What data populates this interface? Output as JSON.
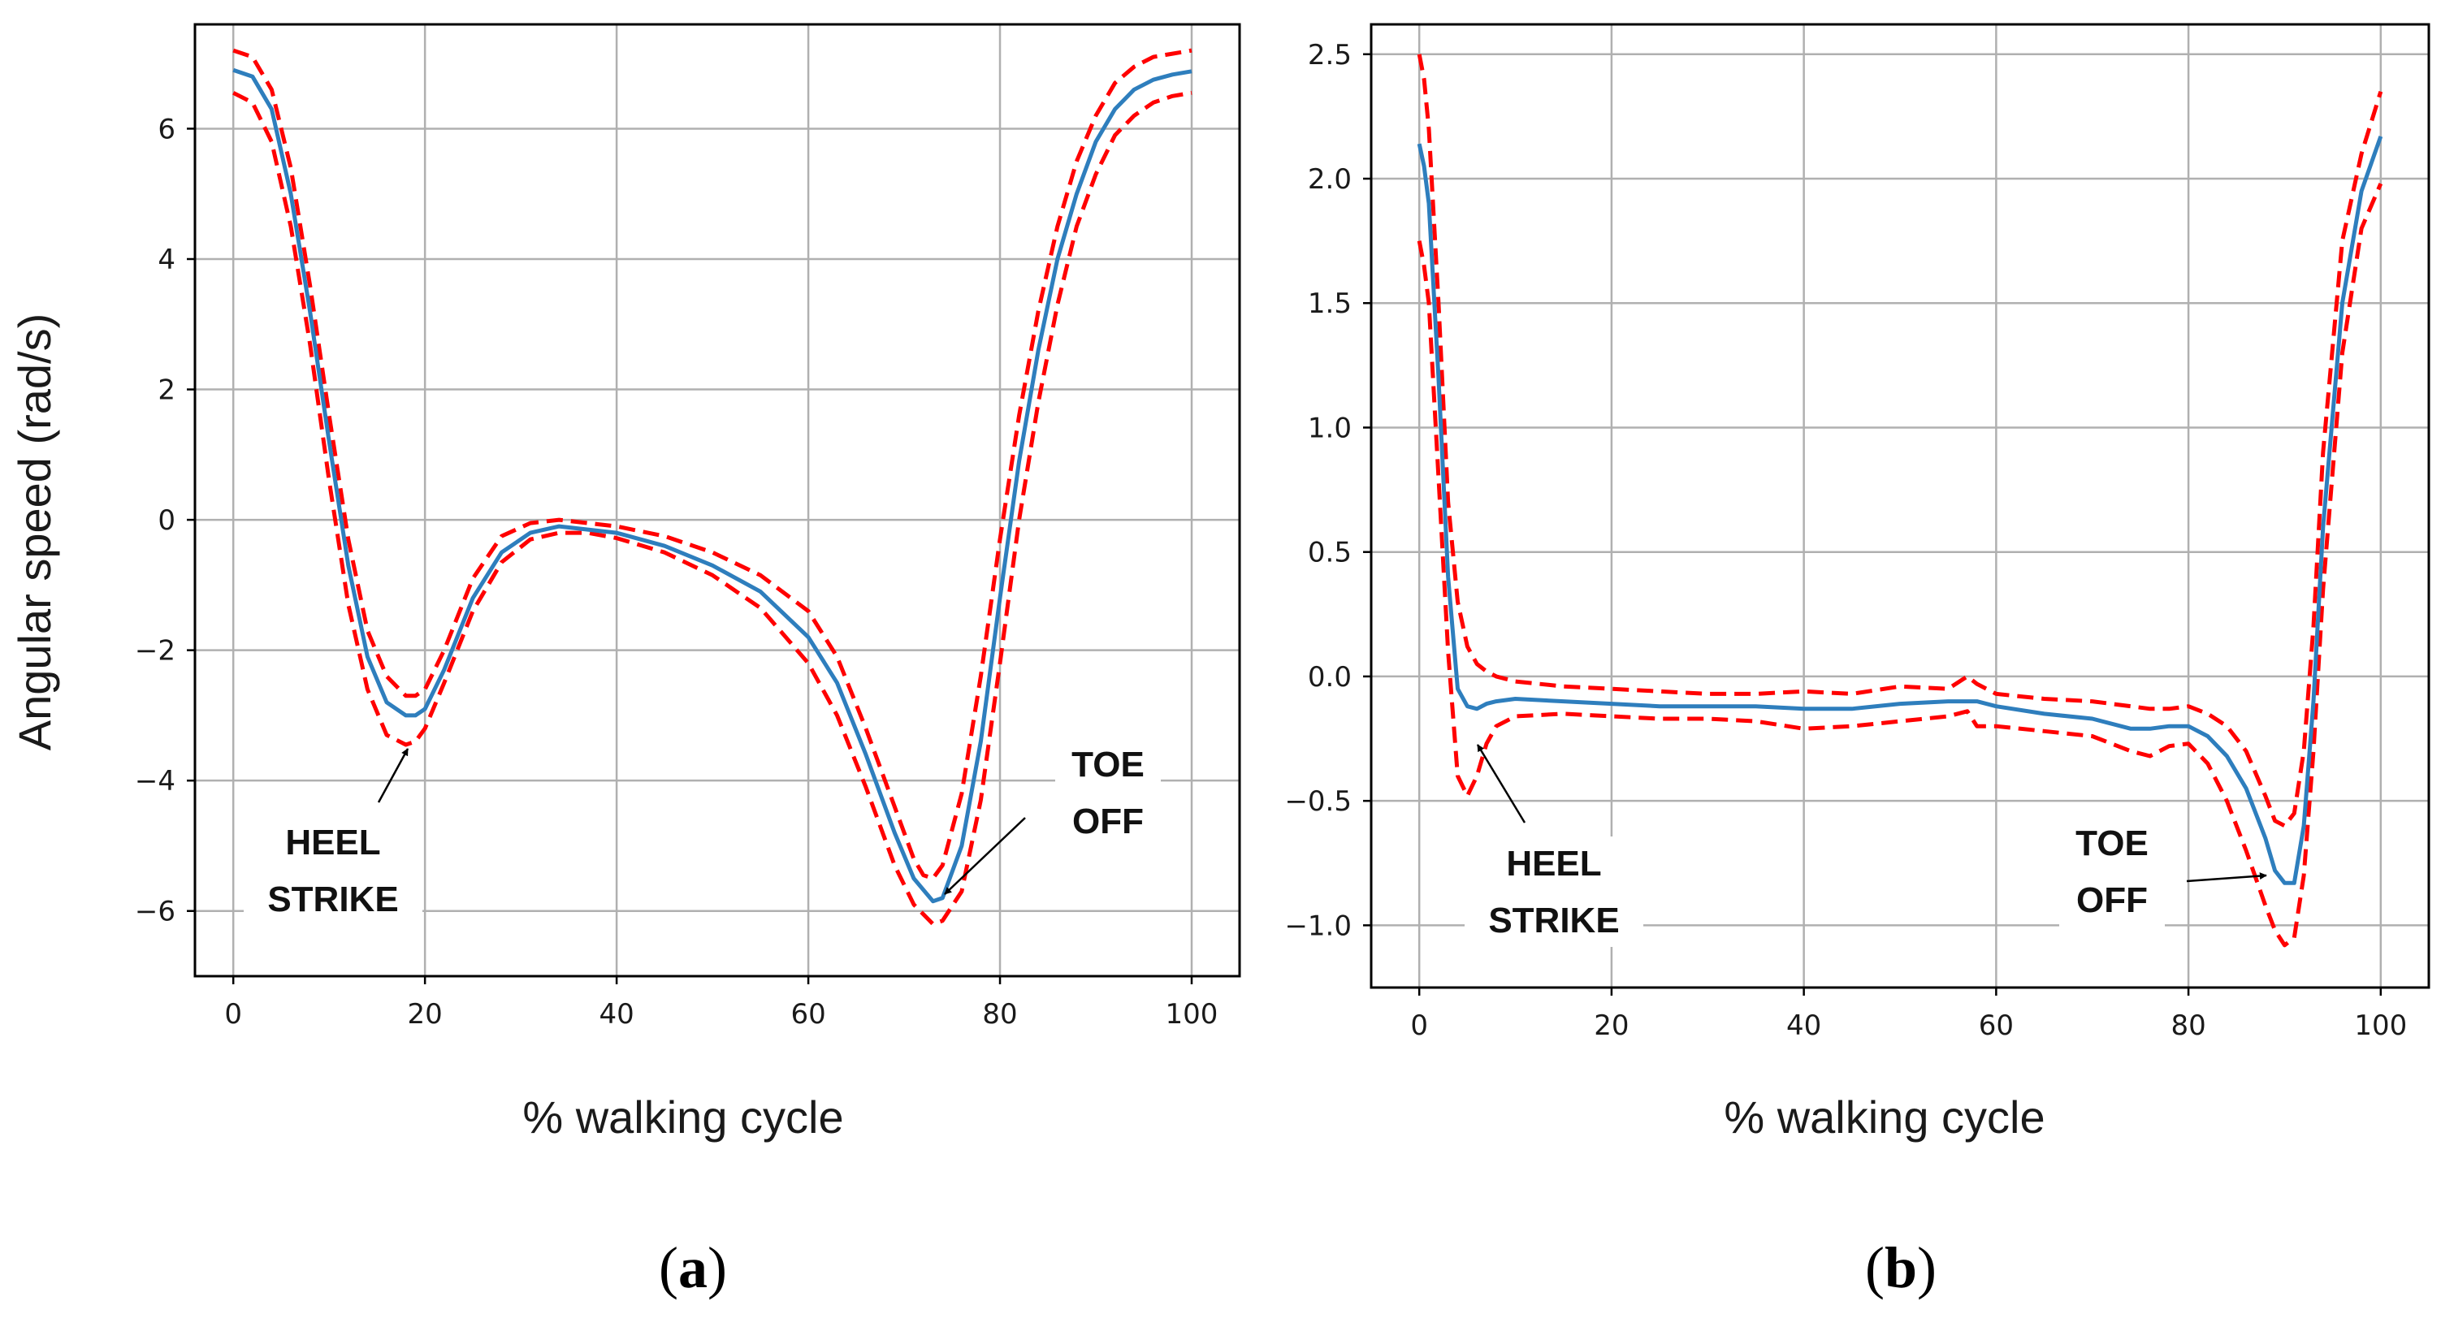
{
  "colors": {
    "mean": "#2e7ebd",
    "band": "#ff0000",
    "grid": "#b0b0b0"
  },
  "chart_data": [
    {
      "panel": "a",
      "type": "line",
      "panel_label": {
        "open": "(",
        "letter": "a",
        "close": ")"
      },
      "xlabel": "% walking cycle",
      "ylabel": "Angular speed (rad/s)",
      "xlim": [
        -4,
        105
      ],
      "ylim": [
        -7,
        7.6
      ],
      "xticks": [
        0,
        20,
        40,
        60,
        80,
        100
      ],
      "xtick_labels": [
        "0",
        "20",
        "40",
        "60",
        "80",
        "100"
      ],
      "yticks": [
        6,
        4,
        2,
        0,
        -2,
        -4,
        -6
      ],
      "ytick_labels": [
        "6",
        "4",
        "2",
        "0",
        "−2",
        "−4",
        "−6"
      ],
      "grid": true,
      "series": [
        {
          "name": "mean",
          "style": "solid",
          "x": [
            0,
            2,
            4,
            6,
            8,
            10,
            12,
            14,
            16,
            18,
            19,
            20,
            22,
            25,
            28,
            31,
            34,
            37,
            40,
            45,
            50,
            55,
            60,
            63,
            66,
            69,
            71,
            73,
            74,
            76,
            78,
            80,
            82,
            84,
            86,
            88,
            90,
            92,
            94,
            96,
            98,
            100
          ],
          "y": [
            6.9,
            6.8,
            6.3,
            5.0,
            3.2,
            1.2,
            -0.7,
            -2.1,
            -2.8,
            -3.0,
            -3.0,
            -2.9,
            -2.3,
            -1.2,
            -0.5,
            -0.2,
            -0.1,
            -0.15,
            -0.2,
            -0.4,
            -0.7,
            -1.1,
            -1.8,
            -2.5,
            -3.6,
            -4.8,
            -5.5,
            -5.85,
            -5.8,
            -5.0,
            -3.4,
            -1.2,
            0.9,
            2.6,
            4.0,
            5.0,
            5.8,
            6.3,
            6.6,
            6.75,
            6.83,
            6.88
          ]
        },
        {
          "name": "upper bound",
          "style": "dashed",
          "x": [
            0,
            2,
            4,
            6,
            8,
            10,
            12,
            14,
            16,
            18,
            19,
            20,
            22,
            25,
            28,
            31,
            34,
            37,
            40,
            45,
            50,
            55,
            60,
            63,
            66,
            69,
            71,
            72,
            73,
            74,
            76,
            78,
            80,
            82,
            84,
            86,
            88,
            90,
            92,
            94,
            96,
            98,
            100
          ],
          "y": [
            7.2,
            7.1,
            6.6,
            5.4,
            3.6,
            1.6,
            -0.3,
            -1.7,
            -2.4,
            -2.7,
            -2.7,
            -2.6,
            -2.0,
            -0.9,
            -0.25,
            -0.05,
            0.0,
            -0.05,
            -0.1,
            -0.25,
            -0.5,
            -0.85,
            -1.4,
            -2.1,
            -3.2,
            -4.4,
            -5.2,
            -5.45,
            -5.5,
            -5.3,
            -4.2,
            -2.4,
            -0.3,
            1.6,
            3.2,
            4.5,
            5.5,
            6.2,
            6.7,
            6.95,
            7.1,
            7.15,
            7.2
          ]
        },
        {
          "name": "lower bound",
          "style": "dashed",
          "x": [
            0,
            2,
            4,
            6,
            8,
            10,
            12,
            14,
            16,
            18,
            19,
            20,
            22,
            25,
            28,
            31,
            34,
            37,
            40,
            45,
            50,
            55,
            60,
            63,
            66,
            69,
            71,
            73,
            74,
            76,
            78,
            80,
            82,
            84,
            86,
            88,
            90,
            92,
            94,
            96,
            98,
            100
          ],
          "y": [
            6.55,
            6.4,
            5.8,
            4.5,
            2.7,
            0.6,
            -1.3,
            -2.6,
            -3.3,
            -3.45,
            -3.4,
            -3.2,
            -2.5,
            -1.4,
            -0.65,
            -0.3,
            -0.2,
            -0.2,
            -0.28,
            -0.5,
            -0.85,
            -1.35,
            -2.2,
            -3.0,
            -4.1,
            -5.3,
            -5.9,
            -6.2,
            -6.15,
            -5.7,
            -4.3,
            -2.2,
            0.0,
            1.8,
            3.3,
            4.5,
            5.3,
            5.9,
            6.2,
            6.4,
            6.5,
            6.55
          ]
        }
      ],
      "annotations": [
        {
          "lines": [
            "HEEL",
            "STRIKE"
          ],
          "point": [
            17.5,
            -3.3
          ]
        },
        {
          "lines": [
            "TOE",
            "OFF"
          ],
          "point": [
            74.5,
            -5.6
          ]
        }
      ]
    },
    {
      "panel": "b",
      "type": "line",
      "panel_label": {
        "open": "(",
        "letter": "b",
        "close": ")"
      },
      "xlabel": "% walking cycle",
      "ylabel": "",
      "xlim": [
        -5,
        105
      ],
      "ylim": [
        -1.25,
        2.62
      ],
      "xticks": [
        0,
        20,
        40,
        60,
        80,
        100
      ],
      "xtick_labels": [
        "0",
        "20",
        "40",
        "60",
        "80",
        "100"
      ],
      "yticks": [
        2.5,
        2.0,
        1.5,
        1.0,
        0.5,
        0.0,
        -0.5,
        -1.0
      ],
      "ytick_labels": [
        "2.5",
        "2.0",
        "1.5",
        "1.0",
        "0.5",
        "0.0",
        "−0.5",
        "−1.0"
      ],
      "grid": true,
      "series": [
        {
          "name": "mean",
          "style": "solid",
          "x": [
            0,
            0.5,
            1,
            2,
            3,
            4,
            5,
            6,
            7,
            8,
            10,
            15,
            20,
            25,
            30,
            35,
            40,
            45,
            50,
            55,
            58,
            60,
            65,
            70,
            74,
            76,
            78,
            80,
            82,
            84,
            86,
            88,
            89,
            90,
            91,
            92,
            93,
            94,
            96,
            98,
            100
          ],
          "y": [
            2.14,
            2.05,
            1.9,
            1.2,
            0.4,
            -0.05,
            -0.12,
            -0.13,
            -0.11,
            -0.1,
            -0.09,
            -0.1,
            -0.11,
            -0.12,
            -0.12,
            -0.12,
            -0.13,
            -0.13,
            -0.11,
            -0.1,
            -0.1,
            -0.12,
            -0.15,
            -0.17,
            -0.21,
            -0.21,
            -0.2,
            -0.2,
            -0.24,
            -0.32,
            -0.45,
            -0.65,
            -0.78,
            -0.83,
            -0.83,
            -0.6,
            -0.1,
            0.6,
            1.5,
            1.95,
            2.17
          ]
        },
        {
          "name": "upper bound",
          "style": "dashed",
          "x": [
            0,
            0.5,
            1,
            2,
            3,
            4,
            5,
            6,
            7,
            8,
            10,
            15,
            20,
            25,
            30,
            35,
            40,
            45,
            50,
            55,
            57,
            58,
            60,
            65,
            70,
            74,
            76,
            78,
            80,
            82,
            84,
            86,
            88,
            89,
            90,
            91,
            92,
            93,
            94,
            96,
            98,
            100
          ],
          "y": [
            2.5,
            2.4,
            2.2,
            1.5,
            0.7,
            0.3,
            0.12,
            0.05,
            0.02,
            0.0,
            -0.02,
            -0.04,
            -0.05,
            -0.06,
            -0.07,
            -0.07,
            -0.06,
            -0.07,
            -0.04,
            -0.05,
            0.0,
            -0.03,
            -0.07,
            -0.09,
            -0.1,
            -0.12,
            -0.13,
            -0.13,
            -0.12,
            -0.15,
            -0.2,
            -0.3,
            -0.48,
            -0.58,
            -0.6,
            -0.55,
            -0.3,
            0.2,
            0.9,
            1.75,
            2.1,
            2.35
          ]
        },
        {
          "name": "lower bound",
          "style": "dashed",
          "x": [
            0,
            0.5,
            1,
            2,
            3,
            4,
            5,
            6,
            7,
            8,
            10,
            15,
            20,
            25,
            30,
            35,
            40,
            45,
            50,
            55,
            57,
            58,
            60,
            65,
            70,
            74,
            76,
            78,
            80,
            82,
            84,
            86,
            88,
            89,
            90,
            91,
            92,
            93,
            94,
            96,
            98,
            100
          ],
          "y": [
            1.75,
            1.65,
            1.5,
            0.8,
            0.1,
            -0.4,
            -0.48,
            -0.4,
            -0.27,
            -0.2,
            -0.16,
            -0.15,
            -0.16,
            -0.17,
            -0.17,
            -0.18,
            -0.21,
            -0.2,
            -0.18,
            -0.16,
            -0.14,
            -0.2,
            -0.2,
            -0.22,
            -0.24,
            -0.3,
            -0.32,
            -0.28,
            -0.27,
            -0.35,
            -0.5,
            -0.7,
            -0.92,
            -1.02,
            -1.08,
            -1.05,
            -0.8,
            -0.3,
            0.35,
            1.3,
            1.8,
            1.98
          ]
        }
      ],
      "annotations": [
        {
          "lines": [
            "HEEL",
            "STRIKE"
          ],
          "point": [
            6.2,
            -0.25
          ]
        },
        {
          "lines": [
            "TOE",
            "OFF"
          ],
          "point": [
            89.5,
            -0.82
          ]
        }
      ]
    }
  ]
}
